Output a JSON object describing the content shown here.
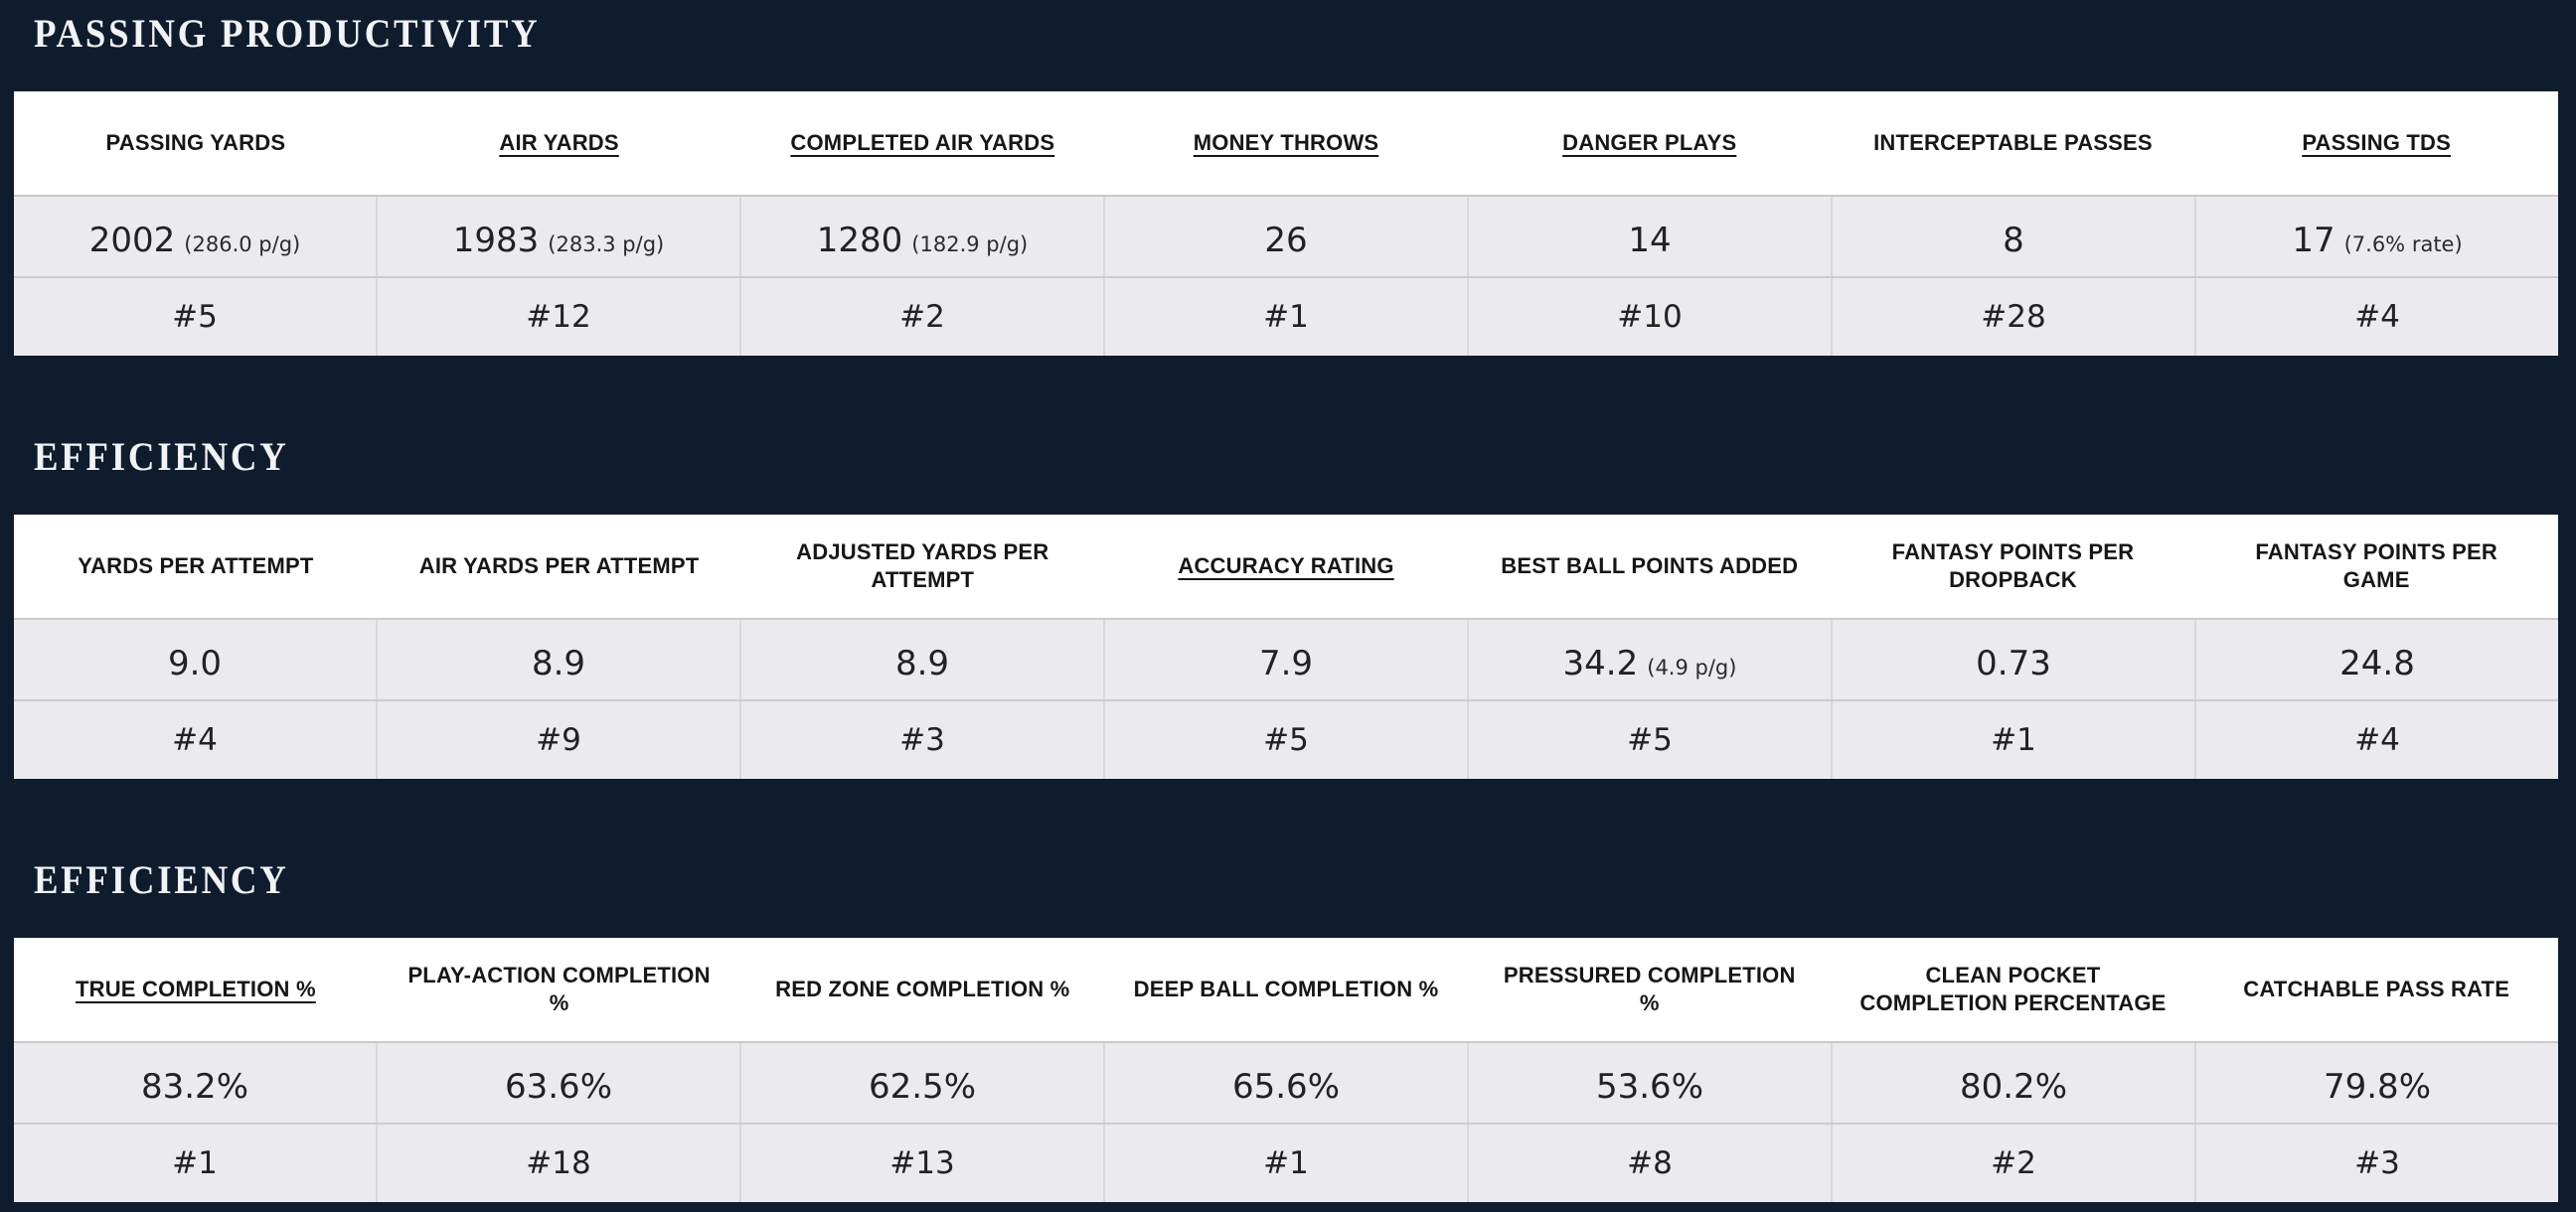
{
  "colors": {
    "background": "#0e1c2e",
    "table_header_bg": "#ffffff",
    "row_bg": "#ebebed",
    "row_border": "#c9cace",
    "header_text": "#161618",
    "value_text": "#222224",
    "title_text": "#f2f3f5"
  },
  "sections": [
    {
      "title": "PASSING PRODUCTIVITY",
      "columns": [
        {
          "label": "PASSING YARDS",
          "underlined": false,
          "value": "2002",
          "note": "(286.0 p/g)",
          "rank": "#5"
        },
        {
          "label": "AIR YARDS",
          "underlined": true,
          "value": "1983",
          "note": "(283.3 p/g)",
          "rank": "#12"
        },
        {
          "label": "COMPLETED AIR YARDS",
          "underlined": true,
          "value": "1280",
          "note": "(182.9 p/g)",
          "rank": "#2"
        },
        {
          "label": "MONEY THROWS",
          "underlined": true,
          "value": "26",
          "note": "",
          "rank": "#1"
        },
        {
          "label": "DANGER PLAYS",
          "underlined": true,
          "value": "14",
          "note": "",
          "rank": "#10"
        },
        {
          "label": "INTERCEPTABLE PASSES",
          "underlined": false,
          "value": "8",
          "note": "",
          "rank": "#28"
        },
        {
          "label": "PASSING TDS",
          "underlined": true,
          "value": "17",
          "note": "(7.6% rate)",
          "rank": "#4"
        }
      ]
    },
    {
      "title": "EFFICIENCY",
      "columns": [
        {
          "label": "YARDS PER ATTEMPT",
          "underlined": false,
          "value": "9.0",
          "note": "",
          "rank": "#4"
        },
        {
          "label": "AIR YARDS PER ATTEMPT",
          "underlined": false,
          "value": "8.9",
          "note": "",
          "rank": "#9"
        },
        {
          "label": "ADJUSTED YARDS PER ATTEMPT",
          "underlined": false,
          "value": "8.9",
          "note": "",
          "rank": "#3"
        },
        {
          "label": "ACCURACY RATING",
          "underlined": true,
          "value": "7.9",
          "note": "",
          "rank": "#5"
        },
        {
          "label": "BEST BALL POINTS ADDED",
          "underlined": false,
          "value": "34.2",
          "note": "(4.9 p/g)",
          "rank": "#5"
        },
        {
          "label": "FANTASY POINTS PER DROPBACK",
          "underlined": false,
          "value": "0.73",
          "note": "",
          "rank": "#1"
        },
        {
          "label": "FANTASY POINTS PER GAME",
          "underlined": false,
          "value": "24.8",
          "note": "",
          "rank": "#4"
        }
      ]
    },
    {
      "title": "EFFICIENCY",
      "columns": [
        {
          "label": "TRUE COMPLETION %",
          "underlined": true,
          "value": "83.2%",
          "note": "",
          "rank": "#1"
        },
        {
          "label": "PLAY-ACTION COMPLETION %",
          "underlined": false,
          "value": "63.6%",
          "note": "",
          "rank": "#18"
        },
        {
          "label": "RED ZONE COMPLETION %",
          "underlined": false,
          "value": "62.5%",
          "note": "",
          "rank": "#13"
        },
        {
          "label": "DEEP BALL COMPLETION %",
          "underlined": false,
          "value": "65.6%",
          "note": "",
          "rank": "#1"
        },
        {
          "label": "PRESSURED COMPLETION %",
          "underlined": false,
          "value": "53.6%",
          "note": "",
          "rank": "#8"
        },
        {
          "label": "CLEAN POCKET COMPLETION PERCENTAGE",
          "underlined": false,
          "value": "80.2%",
          "note": "",
          "rank": "#2"
        },
        {
          "label": "CATCHABLE PASS RATE",
          "underlined": false,
          "value": "79.8%",
          "note": "",
          "rank": "#3"
        }
      ]
    }
  ]
}
